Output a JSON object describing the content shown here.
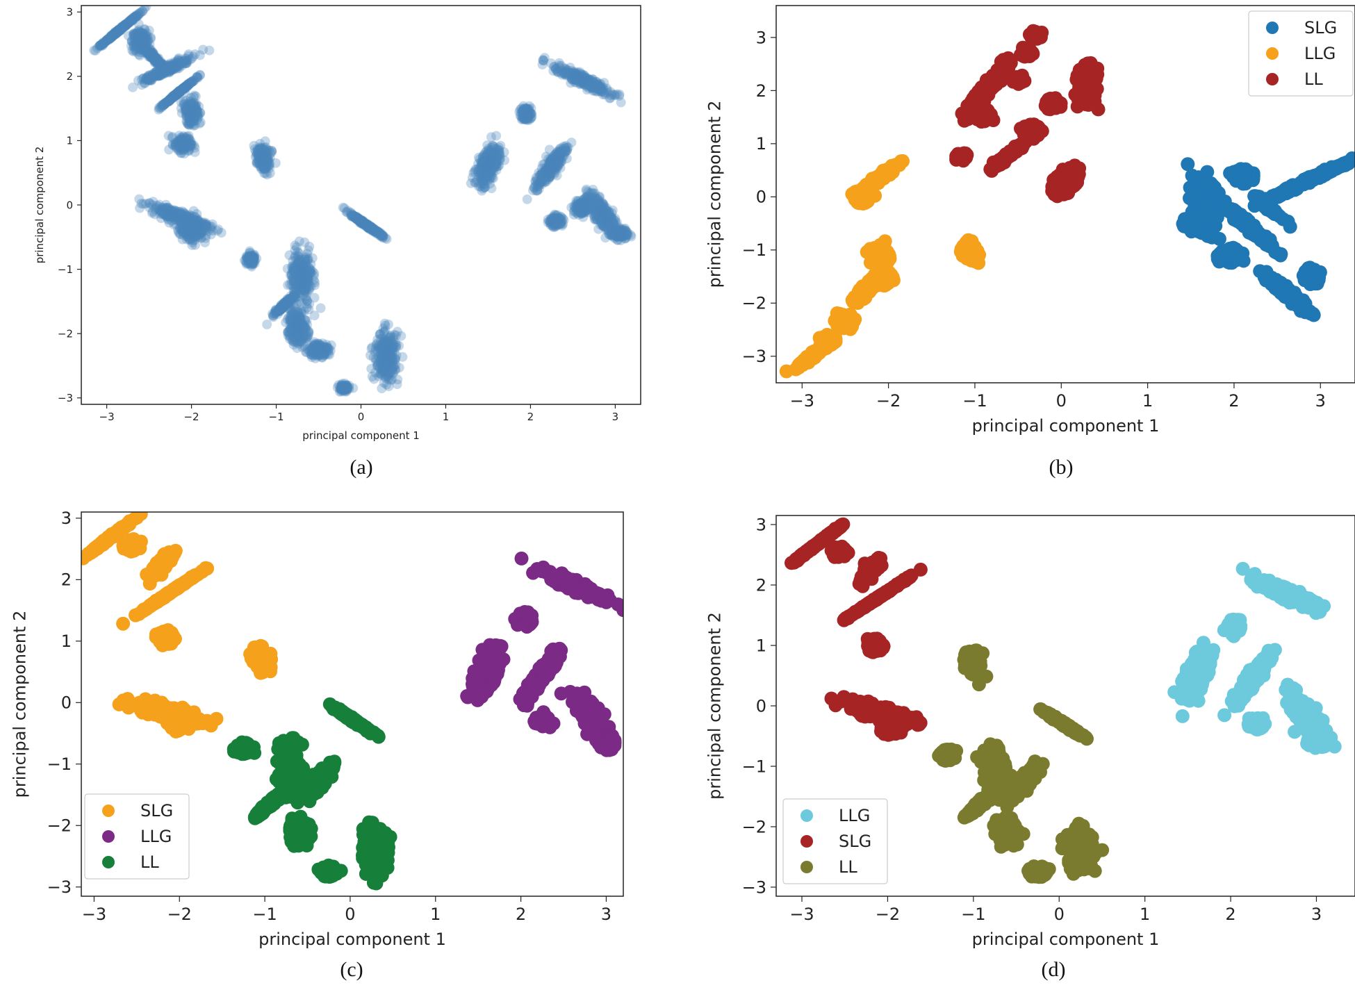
{
  "chart_data": [
    {
      "type": "scatter",
      "caption": "(a)",
      "xlabel": "principal component 1",
      "ylabel": "principal component 2",
      "xlim": [
        -3.3,
        3.3
      ],
      "ylim": [
        -3.1,
        3.1
      ],
      "xticks": [
        -3,
        -2,
        -1,
        0,
        1,
        2,
        3
      ],
      "yticks": [
        -3,
        -2,
        -1,
        0,
        1,
        2,
        3
      ],
      "legend": null,
      "series": [
        {
          "name": "",
          "color": "#4a86bb",
          "clusters": [
            [
              -2.85,
              2.72,
              0.07,
              0.1,
              2.3
            ],
            [
              -2.6,
              2.55,
              0.05,
              0.08,
              0
            ],
            [
              -2.45,
              2.3,
              0.05,
              0.06,
              1.0
            ],
            [
              -2.3,
              2.1,
              0.06,
              0.1,
              2.6
            ],
            [
              -2.15,
              1.75,
              0.06,
              0.08,
              2.3
            ],
            [
              -2.0,
              1.45,
              0.05,
              0.06,
              1.5
            ],
            [
              -2.1,
              0.95,
              0.05,
              0.06,
              0
            ],
            [
              -2.15,
              -0.18,
              0.07,
              0.12,
              0.4
            ],
            [
              -2.0,
              -0.38,
              0.07,
              0.08,
              0
            ],
            [
              -1.15,
              0.72,
              0.05,
              0.06,
              1.5
            ],
            [
              -1.3,
              -0.85,
              0.03,
              0.04,
              0
            ],
            [
              -0.7,
              -1.1,
              0.07,
              0.12,
              1.5
            ],
            [
              -0.9,
              -1.55,
              0.05,
              0.06,
              2.2
            ],
            [
              -0.75,
              -1.9,
              0.06,
              0.08,
              1.5
            ],
            [
              -0.5,
              -2.25,
              0.06,
              0.05,
              0
            ],
            [
              0.05,
              -0.3,
              0.07,
              0.08,
              0.7
            ],
            [
              0.3,
              -2.35,
              0.07,
              0.18,
              0
            ],
            [
              -0.2,
              -2.85,
              0.03,
              0.03,
              0
            ],
            [
              1.5,
              0.6,
              0.07,
              0.1,
              1.8
            ],
            [
              1.95,
              1.42,
              0.03,
              0.05,
              0
            ],
            [
              2.25,
              0.6,
              0.07,
              0.1,
              2.0
            ],
            [
              2.3,
              -0.25,
              0.04,
              0.04,
              0
            ],
            [
              2.6,
              1.95,
              0.08,
              0.12,
              0.5
            ],
            [
              2.85,
              -0.15,
              0.08,
              0.1,
              1.2
            ],
            [
              2.6,
              -0.05,
              0.04,
              0.06,
              0
            ],
            [
              3.05,
              -0.45,
              0.05,
              0.04,
              0
            ]
          ]
        }
      ]
    },
    {
      "type": "scatter",
      "caption": "(b)",
      "xlabel": "principal component 1",
      "ylabel": "principal component 2",
      "xlim": [
        -3.3,
        3.4
      ],
      "ylim": [
        -3.5,
        3.6
      ],
      "xticks": [
        -3,
        -2,
        -1,
        0,
        1,
        2,
        3
      ],
      "yticks": [
        -3,
        -2,
        -1,
        0,
        1,
        2,
        3
      ],
      "legend": {
        "position": "top-right",
        "entries": [
          "SLG",
          "LLG",
          "LL"
        ]
      },
      "series": [
        {
          "name": "SLG",
          "color": "#1f77b4",
          "clusters": [
            [
              1.65,
              -0.15,
              0.07,
              0.14,
              1.5
            ],
            [
              1.5,
              -0.5,
              0.04,
              0.06,
              0
            ],
            [
              2.1,
              0.4,
              0.05,
              0.05,
              0
            ],
            [
              2.2,
              -0.6,
              0.06,
              0.14,
              1.0
            ],
            [
              1.95,
              -1.1,
              0.05,
              0.06,
              0
            ],
            [
              2.4,
              -0.2,
              0.04,
              0.06,
              1.0
            ],
            [
              2.85,
              0.3,
              0.07,
              0.18,
              2.5
            ],
            [
              2.6,
              -1.8,
              0.08,
              0.12,
              1.0
            ],
            [
              2.9,
              -1.5,
              0.04,
              0.06,
              0
            ]
          ]
        },
        {
          "name": "LLG",
          "color": "#f5a11c",
          "clusters": [
            [
              -2.15,
              0.3,
              0.07,
              0.1,
              2.2
            ],
            [
              -2.3,
              0.0,
              0.04,
              0.06,
              0
            ],
            [
              -2.1,
              -1.1,
              0.05,
              0.08,
              0
            ],
            [
              -2.25,
              -1.75,
              0.05,
              0.07,
              2.0
            ],
            [
              -2.05,
              -1.5,
              0.04,
              0.06,
              0
            ],
            [
              -2.5,
              -2.35,
              0.04,
              0.05,
              0
            ],
            [
              -2.85,
              -2.95,
              0.06,
              0.08,
              2.2
            ],
            [
              -2.7,
              -2.7,
              0.04,
              0.04,
              0
            ],
            [
              -1.05,
              -1.05,
              0.05,
              0.05,
              1.5
            ]
          ]
        },
        {
          "name": "LL",
          "color": "#a62424",
          "clusters": [
            [
              -1.15,
              0.75,
              0.03,
              0.03,
              0
            ],
            [
              -0.85,
              2.05,
              0.06,
              0.15,
              2.0
            ],
            [
              -0.9,
              1.55,
              0.04,
              0.05,
              0
            ],
            [
              -0.5,
              2.2,
              0.03,
              0.03,
              0
            ],
            [
              -0.6,
              0.8,
              0.06,
              0.08,
              2.2
            ],
            [
              -0.35,
              1.25,
              0.05,
              0.05,
              0
            ],
            [
              -0.1,
              1.75,
              0.04,
              0.04,
              0
            ],
            [
              0.3,
              2.1,
              0.05,
              0.15,
              0
            ],
            [
              0.05,
              0.3,
              0.07,
              0.07,
              1.8
            ],
            [
              -0.3,
              3.05,
              0.03,
              0.03,
              0
            ],
            [
              -0.4,
              2.7,
              0.03,
              0.03,
              0
            ]
          ]
        }
      ]
    },
    {
      "type": "scatter",
      "caption": "(c)",
      "xlabel": "principal component 1",
      "ylabel": "principal component 2",
      "xlim": [
        -3.15,
        3.2
      ],
      "ylim": [
        -3.15,
        3.1
      ],
      "xticks": [
        -3,
        -2,
        -1,
        0,
        1,
        2,
        3
      ],
      "yticks": [
        -3,
        -2,
        -1,
        0,
        1,
        2,
        3
      ],
      "legend": {
        "position": "bottom-left",
        "entries": [
          "SLG",
          "LLG",
          "LL"
        ]
      },
      "series": [
        {
          "name": "SLG",
          "color": "#f5a11c",
          "clusters": [
            [
              -2.8,
              2.7,
              0.08,
              0.1,
              2.3
            ],
            [
              -2.55,
              2.55,
              0.04,
              0.04,
              0
            ],
            [
              -2.1,
              1.8,
              0.07,
              0.13,
              2.4
            ],
            [
              -2.2,
              2.25,
              0.05,
              0.06,
              2.0
            ],
            [
              -2.15,
              1.05,
              0.04,
              0.05,
              0
            ],
            [
              -2.15,
              -0.15,
              0.07,
              0.12,
              0.3
            ],
            [
              -2.0,
              -0.3,
              0.06,
              0.07,
              0
            ],
            [
              -1.05,
              0.7,
              0.05,
              0.05,
              1.5
            ]
          ]
        },
        {
          "name": "LLG",
          "color": "#7b2a85",
          "clusters": [
            [
              1.6,
              0.5,
              0.07,
              0.12,
              1.8
            ],
            [
              2.05,
              1.35,
              0.04,
              0.05,
              0
            ],
            [
              2.25,
              0.45,
              0.06,
              0.12,
              2.0
            ],
            [
              2.65,
              1.9,
              0.08,
              0.12,
              0.5
            ],
            [
              2.85,
              -0.3,
              0.08,
              0.12,
              1.2
            ],
            [
              2.25,
              -0.3,
              0.04,
              0.04,
              0
            ],
            [
              3.0,
              -0.65,
              0.04,
              0.04,
              0
            ]
          ]
        },
        {
          "name": "LL",
          "color": "#16803a",
          "clusters": [
            [
              0.05,
              -0.3,
              0.07,
              0.08,
              0.7
            ],
            [
              -1.25,
              -0.75,
              0.04,
              0.04,
              0
            ],
            [
              -0.7,
              -1.1,
              0.07,
              0.12,
              1.5
            ],
            [
              -0.9,
              -1.6,
              0.06,
              0.08,
              2.2
            ],
            [
              -0.6,
              -2.1,
              0.06,
              0.06,
              1.5
            ],
            [
              -0.35,
              -1.25,
              0.06,
              0.08,
              2.0
            ],
            [
              0.3,
              -2.4,
              0.07,
              0.16,
              0
            ],
            [
              -0.25,
              -2.75,
              0.04,
              0.04,
              0
            ]
          ]
        }
      ]
    },
    {
      "type": "scatter",
      "caption": "(d)",
      "xlabel": "principal component 1",
      "ylabel": "principal component 2",
      "xlim": [
        -3.3,
        3.45
      ],
      "ylim": [
        -3.15,
        3.15
      ],
      "xticks": [
        -3,
        -2,
        -1,
        0,
        1,
        2,
        3
      ],
      "yticks": [
        -3,
        -2,
        -1,
        0,
        1,
        2,
        3
      ],
      "legend": {
        "position": "bottom-left",
        "entries": [
          "LLG",
          "SLG",
          "LL"
        ]
      },
      "series": [
        {
          "name": "LLG",
          "color": "#6ccadc",
          "clusters": [
            [
              1.6,
              0.5,
              0.07,
              0.12,
              1.8
            ],
            [
              2.05,
              1.3,
              0.04,
              0.05,
              0
            ],
            [
              2.25,
              0.45,
              0.06,
              0.12,
              2.0
            ],
            [
              2.65,
              1.85,
              0.08,
              0.12,
              0.5
            ],
            [
              2.9,
              -0.2,
              0.08,
              0.12,
              1.2
            ],
            [
              2.3,
              -0.3,
              0.04,
              0.04,
              0
            ],
            [
              3.0,
              -0.6,
              0.04,
              0.04,
              0
            ]
          ]
        },
        {
          "name": "SLG",
          "color": "#a62424",
          "clusters": [
            [
              -2.8,
              2.7,
              0.08,
              0.1,
              2.3
            ],
            [
              -2.55,
              2.55,
              0.04,
              0.04,
              0
            ],
            [
              -2.1,
              1.8,
              0.07,
              0.13,
              2.4
            ],
            [
              -2.2,
              2.25,
              0.05,
              0.06,
              2.0
            ],
            [
              -2.15,
              1.0,
              0.04,
              0.05,
              0
            ],
            [
              -2.1,
              -0.1,
              0.07,
              0.12,
              0.3
            ],
            [
              -1.95,
              -0.3,
              0.06,
              0.07,
              0
            ]
          ]
        },
        {
          "name": "LL",
          "color": "#7b7b2f",
          "clusters": [
            [
              -1.0,
              0.7,
              0.05,
              0.05,
              1.5
            ],
            [
              0.05,
              -0.3,
              0.07,
              0.08,
              0.7
            ],
            [
              -1.3,
              -0.8,
              0.04,
              0.04,
              0
            ],
            [
              -0.75,
              -1.1,
              0.07,
              0.12,
              1.5
            ],
            [
              -0.9,
              -1.6,
              0.06,
              0.08,
              2.2
            ],
            [
              -0.6,
              -2.1,
              0.06,
              0.06,
              1.5
            ],
            [
              -0.4,
              -1.25,
              0.06,
              0.08,
              2.0
            ],
            [
              0.25,
              -2.4,
              0.07,
              0.16,
              0
            ],
            [
              -0.25,
              -2.75,
              0.04,
              0.04,
              0
            ]
          ]
        }
      ]
    }
  ]
}
